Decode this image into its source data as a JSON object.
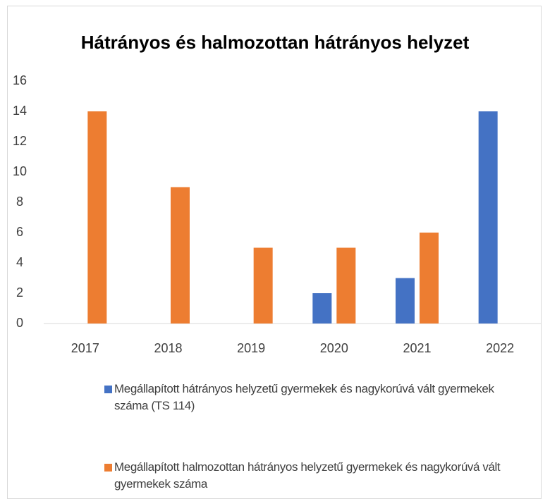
{
  "chart_data": {
    "type": "bar",
    "title": "Hátrányos és halmozottan hátrányos helyzet",
    "categories": [
      "2017",
      "2018",
      "2019",
      "2020",
      "2021",
      "2022"
    ],
    "series": [
      {
        "name": "Megállapított hátrányos helyzetű gyermekek és nagykorúvá vált gyermekek száma (TS 114)",
        "color": "#4472c4",
        "values": [
          0,
          0,
          0,
          2,
          3,
          14
        ]
      },
      {
        "name": "Megállapított halmozottan hátrányos helyzetű gyermekek és nagykorúvá vált gyermekek száma",
        "color": "#ed7d31",
        "values": [
          14,
          9,
          5,
          5,
          6,
          0
        ]
      }
    ],
    "ylim": [
      0,
      16
    ],
    "yticks": [
      0,
      2,
      4,
      6,
      8,
      10,
      12,
      14,
      16
    ],
    "grid": false,
    "legend": "bottom"
  }
}
